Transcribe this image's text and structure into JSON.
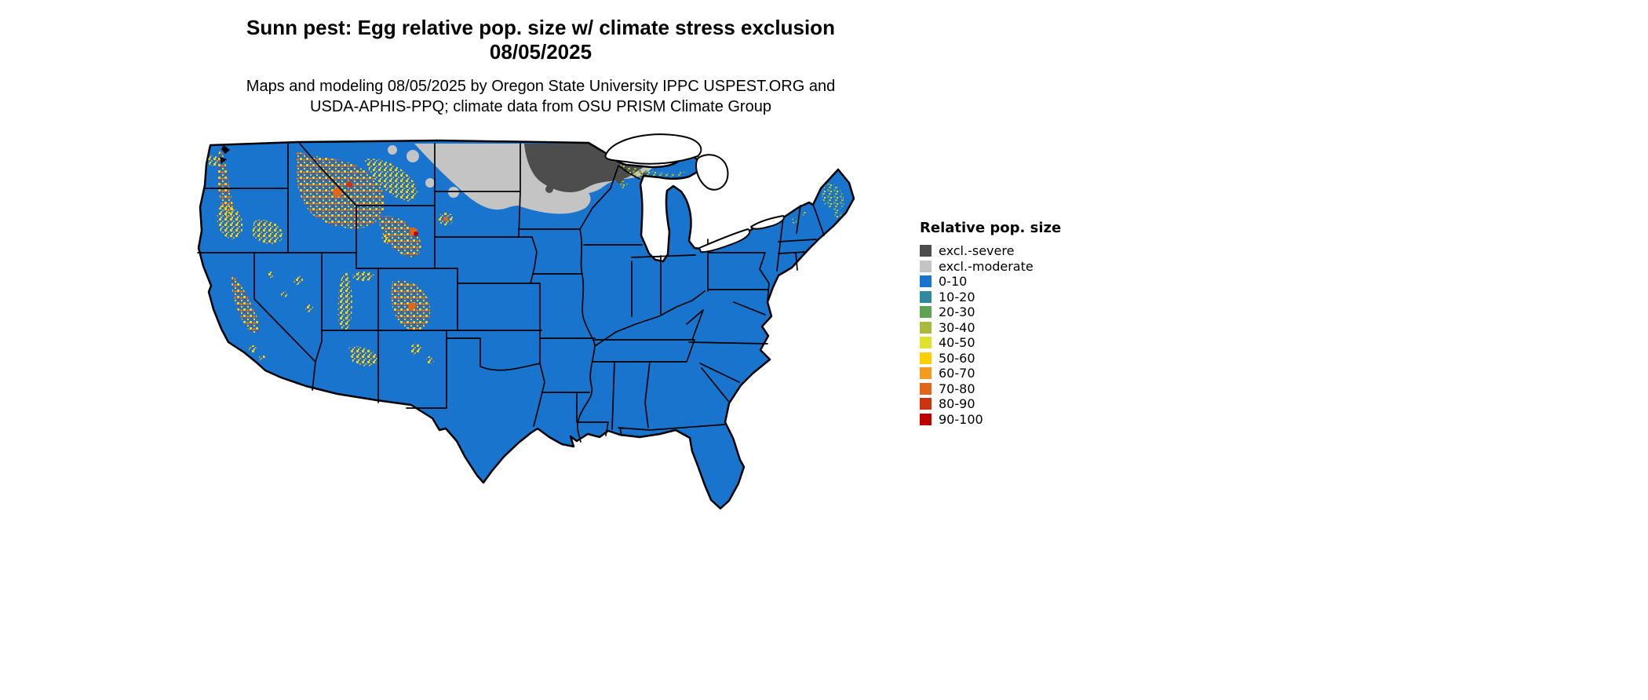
{
  "header": {
    "title_line1": "Sunn pest: Egg relative pop. size w/ climate stress exclusion",
    "title_line2": "08/05/2025",
    "subtitle_line1": "Maps and modeling 08/05/2025 by Oregon State University IPPC USPEST.ORG and",
    "subtitle_line2": "USDA-APHIS-PPQ; climate data from OSU PRISM Climate Group"
  },
  "legend": {
    "title": "Relative pop. size",
    "items": [
      {
        "label": "excl.-severe",
        "color": "#4d4d4d"
      },
      {
        "label": "excl.-moderate",
        "color": "#c4c4c4"
      },
      {
        "label": "0-10",
        "color": "#1874cd"
      },
      {
        "label": "10-20",
        "color": "#2f8aa0"
      },
      {
        "label": "20-30",
        "color": "#60a352"
      },
      {
        "label": "30-40",
        "color": "#a9b83e"
      },
      {
        "label": "40-50",
        "color": "#dfe32f"
      },
      {
        "label": "50-60",
        "color": "#fccf03"
      },
      {
        "label": "60-70",
        "color": "#f39b1d"
      },
      {
        "label": "70-80",
        "color": "#e2661a"
      },
      {
        "label": "80-90",
        "color": "#cc3311"
      },
      {
        "label": "90-100",
        "color": "#bf0000"
      }
    ]
  },
  "map": {
    "region": "Continental United States",
    "dominant_class_label": "0-10",
    "colors": {
      "land": "#1874cd",
      "excl_severe": "#4d4d4d",
      "excl_moderate": "#c4c4c4",
      "border": "#000000",
      "water": "#ffffff"
    }
  }
}
